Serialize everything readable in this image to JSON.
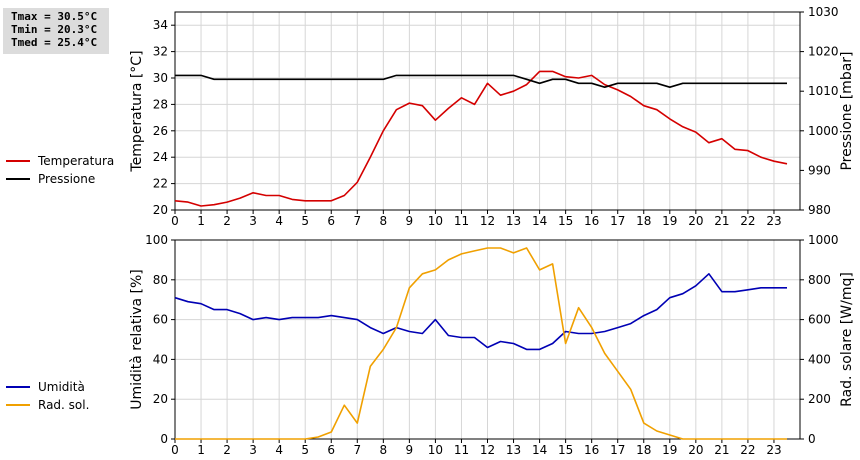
{
  "stats": {
    "tmax": "Tmax = 30.5°C",
    "tmin": "Tmin = 20.3°C",
    "tmed": "Tmed = 25.4°C"
  },
  "colors": {
    "temperature": "#d40000",
    "pressure": "#000000",
    "humidity": "#0000b4",
    "radiation": "#f0a000"
  },
  "chart_data": [
    {
      "type": "line",
      "ylabel_left": "Temperatura [°C]",
      "ylabel_right": "Pressione [mbar]",
      "xlim": [
        0,
        24
      ],
      "xticks": [
        0,
        1,
        2,
        3,
        4,
        5,
        6,
        7,
        8,
        9,
        10,
        11,
        12,
        13,
        14,
        15,
        16,
        17,
        18,
        19,
        20,
        21,
        22,
        23
      ],
      "ylim_left": [
        20,
        35
      ],
      "yticks_left": [
        20,
        22,
        24,
        26,
        28,
        30,
        32,
        34
      ],
      "ylim_right": [
        980,
        1030
      ],
      "yticks_right": [
        980,
        990,
        1000,
        1010,
        1020,
        1030
      ],
      "grid": true,
      "legend_position": "left",
      "series": [
        {
          "name": "Temperatura",
          "axis": "left",
          "color": "#d40000",
          "x": [
            0,
            0.5,
            1,
            1.5,
            2,
            2.5,
            3,
            3.5,
            4,
            4.5,
            5,
            5.5,
            6,
            6.5,
            7,
            7.5,
            8,
            8.5,
            9,
            9.5,
            10,
            10.5,
            11,
            11.5,
            12,
            12.5,
            13,
            13.5,
            14,
            14.5,
            15,
            15.5,
            16,
            16.5,
            17,
            17.5,
            18,
            18.5,
            19,
            19.5,
            20,
            20.5,
            21,
            21.5,
            22,
            22.5,
            23,
            23.5
          ],
          "y": [
            20.7,
            20.6,
            20.3,
            20.4,
            20.6,
            20.9,
            21.3,
            21.1,
            21.1,
            20.8,
            20.7,
            20.7,
            20.7,
            21.1,
            22.1,
            24.0,
            26.0,
            27.6,
            28.1,
            27.9,
            26.8,
            27.7,
            28.5,
            28.0,
            29.6,
            28.7,
            29.0,
            29.5,
            30.5,
            30.5,
            30.1,
            30.0,
            30.2,
            29.5,
            29.1,
            28.6,
            27.9,
            27.6,
            26.9,
            26.3,
            25.9,
            25.1,
            25.4,
            24.6,
            24.5,
            24.0,
            23.7,
            23.5
          ]
        },
        {
          "name": "Pressione",
          "axis": "right",
          "color": "#000000",
          "x": [
            0,
            0.5,
            1,
            1.5,
            2,
            2.5,
            3,
            3.5,
            4,
            4.5,
            5,
            5.5,
            6,
            6.5,
            7,
            7.5,
            8,
            8.5,
            9,
            9.5,
            10,
            10.5,
            11,
            11.5,
            12,
            12.5,
            13,
            13.5,
            14,
            14.5,
            15,
            15.5,
            16,
            16.5,
            17,
            17.5,
            18,
            18.5,
            19,
            19.5,
            20,
            20.5,
            21,
            21.5,
            22,
            22.5,
            23,
            23.5
          ],
          "y": [
            1014,
            1014,
            1014,
            1013,
            1013,
            1013,
            1013,
            1013,
            1013,
            1013,
            1013,
            1013,
            1013,
            1013,
            1013,
            1013,
            1013,
            1014,
            1014,
            1014,
            1014,
            1014,
            1014,
            1014,
            1014,
            1014,
            1014,
            1013,
            1012,
            1013,
            1013,
            1012,
            1012,
            1011,
            1012,
            1012,
            1012,
            1012,
            1011,
            1012,
            1012,
            1012,
            1012,
            1012,
            1012,
            1012,
            1012,
            1012
          ]
        }
      ]
    },
    {
      "type": "line",
      "ylabel_left": "Umidità relativa [%]",
      "ylabel_right": "Rad. solare [W/mq]",
      "xlim": [
        0,
        24
      ],
      "xticks": [
        0,
        1,
        2,
        3,
        4,
        5,
        6,
        7,
        8,
        9,
        10,
        11,
        12,
        13,
        14,
        15,
        16,
        17,
        18,
        19,
        20,
        21,
        22,
        23
      ],
      "ylim_left": [
        0,
        100
      ],
      "yticks_left": [
        0,
        20,
        40,
        60,
        80,
        100
      ],
      "ylim_right": [
        0,
        1000
      ],
      "yticks_right": [
        0,
        200,
        400,
        600,
        800,
        1000
      ],
      "grid": true,
      "legend_position": "left",
      "series": [
        {
          "name": "Umidità",
          "axis": "left",
          "color": "#0000b4",
          "x": [
            0,
            0.5,
            1,
            1.5,
            2,
            2.5,
            3,
            3.5,
            4,
            4.5,
            5,
            5.5,
            6,
            6.5,
            7,
            7.5,
            8,
            8.5,
            9,
            9.5,
            10,
            10.5,
            11,
            11.5,
            12,
            12.5,
            13,
            13.5,
            14,
            14.5,
            15,
            15.5,
            16,
            16.5,
            17,
            17.5,
            18,
            18.5,
            19,
            19.5,
            20,
            20.5,
            21,
            21.5,
            22,
            22.5,
            23,
            23.5
          ],
          "y": [
            71,
            69,
            68,
            65,
            65,
            63,
            60,
            61,
            60,
            61,
            61,
            61,
            62,
            61,
            60,
            56,
            53,
            56,
            54,
            53,
            60,
            52,
            51,
            51,
            46,
            49,
            48,
            45,
            45,
            48,
            54,
            53,
            53,
            54,
            56,
            58,
            62,
            65,
            71,
            73,
            77,
            83,
            74,
            74,
            75,
            76,
            76,
            76
          ]
        },
        {
          "name": "Rad. sol.",
          "axis": "right",
          "color": "#f0a000",
          "x": [
            0,
            0.5,
            1,
            1.5,
            2,
            2.5,
            3,
            3.5,
            4,
            4.5,
            5,
            5.5,
            6,
            6.5,
            7,
            7.5,
            8,
            8.5,
            9,
            9.5,
            10,
            10.5,
            11,
            11.5,
            12,
            12.5,
            13,
            13.5,
            14,
            14.5,
            15,
            15.5,
            16,
            16.5,
            17,
            17.5,
            18,
            18.5,
            19,
            19.5,
            20,
            20.5,
            21,
            21.5,
            22,
            22.5,
            23,
            23.5
          ],
          "y": [
            0,
            0,
            0,
            0,
            0,
            0,
            0,
            0,
            0,
            0,
            0,
            10,
            35,
            170,
            80,
            365,
            450,
            560,
            760,
            830,
            850,
            900,
            930,
            945,
            960,
            960,
            935,
            960,
            850,
            880,
            480,
            660,
            560,
            430,
            340,
            250,
            80,
            40,
            20,
            0,
            0,
            0,
            0,
            0,
            0,
            0,
            0,
            0
          ]
        }
      ]
    }
  ]
}
